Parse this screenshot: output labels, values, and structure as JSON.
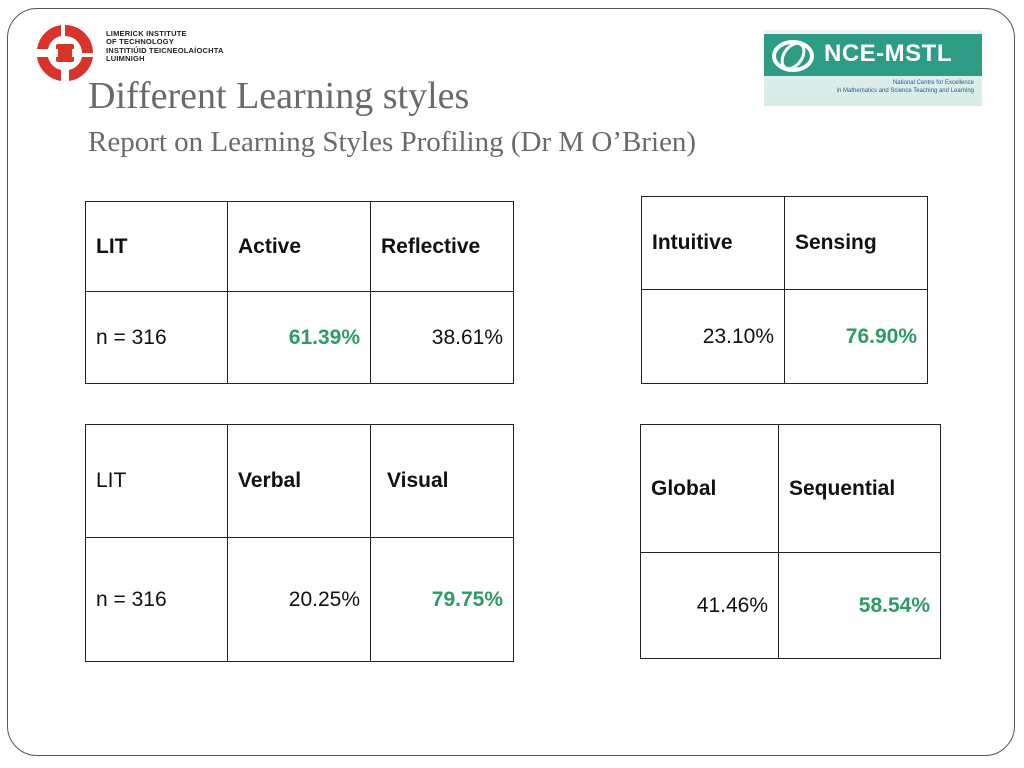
{
  "header": {
    "lit_logo": {
      "lines": [
        "LIMERICK INSTITUTE",
        "OF TECHNOLOGY",
        "INSTITIÚID TEICNEOLAÍOCHTA",
        "LUIMNIGH"
      ],
      "brand_color": "#d9342b"
    },
    "nce_logo": {
      "title": "NCE-MSTL",
      "subtitle_line1": "National Centre for Excellence",
      "subtitle_line2": "in Mathematics and Science Teaching and Learning",
      "brand_color": "#2e9b84"
    }
  },
  "slide": {
    "title": "Different Learning styles",
    "subtitle": "Report on Learning Styles Profiling (Dr M O’Brien)"
  },
  "colors": {
    "highlight": "#2e9b64",
    "text": "#111111",
    "title": "#6a6a6a"
  },
  "tables": {
    "active_reflective": {
      "header": [
        "LIT",
        "Active",
        "Reflective"
      ],
      "row": [
        "n = 316",
        "61.39%",
        "38.61%"
      ]
    },
    "intuitive_sensing": {
      "header": [
        "Intuitive",
        "Sensing"
      ],
      "row": [
        "23.10%",
        "76.90%"
      ]
    },
    "verbal_visual": {
      "header": [
        "LIT",
        "Verbal",
        "Visual"
      ],
      "row": [
        "n = 316",
        "20.25%",
        "79.75%"
      ]
    },
    "global_sequential": {
      "header": [
        "Global",
        "Sequential"
      ],
      "row": [
        "41.46%",
        "58.54%"
      ]
    }
  }
}
